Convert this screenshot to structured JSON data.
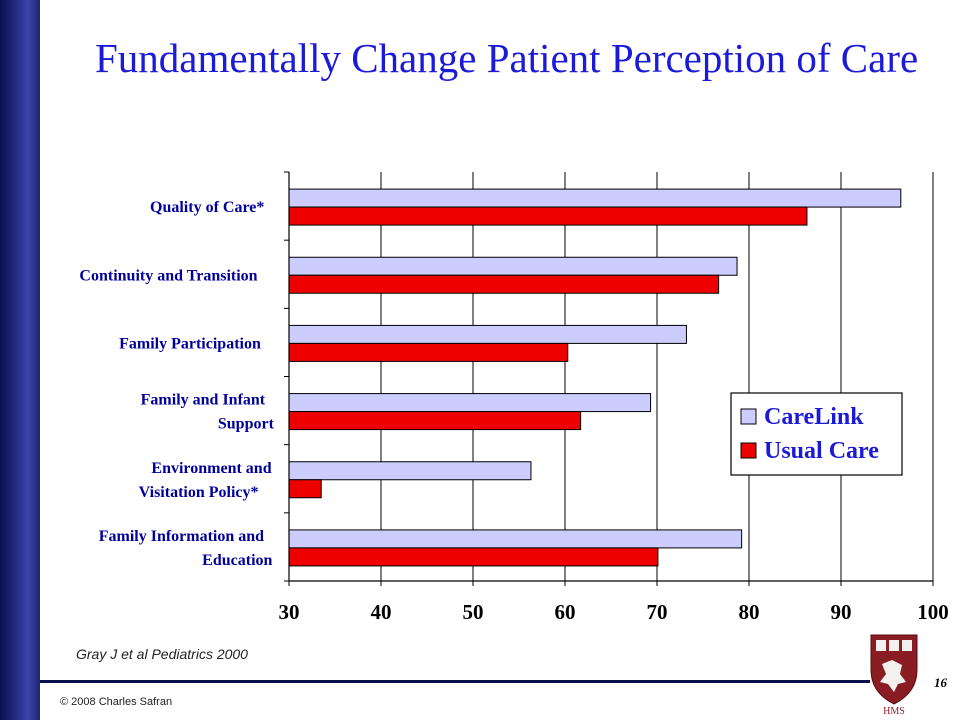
{
  "slide": {
    "title": "Fundamentally Change Patient Perception of Care",
    "citation": "Gray J et al Pediatrics 2000",
    "copyright": "© 2008 Charles Safran",
    "page_number": "16",
    "logo_text": "HMS"
  },
  "colors": {
    "title": "#1a1ad8",
    "sidebar": "#26308c",
    "carelink": "#ccccff",
    "usual_care": "#ee0000"
  },
  "chart_data": {
    "type": "bar",
    "orientation": "horizontal",
    "categories": [
      [
        "Quality of Care*"
      ],
      [
        "Continuity and Transition"
      ],
      [
        "Family Participation"
      ],
      [
        "Family and Infant",
        "Support"
      ],
      [
        "Environment and",
        "Visitation Policy*"
      ],
      [
        "Family Information and",
        "Education"
      ]
    ],
    "series": [
      {
        "name": "CareLink",
        "values": [
          96.5,
          78.7,
          73.2,
          69.3,
          56.3,
          79.2
        ]
      },
      {
        "name": "Usual Care",
        "values": [
          86.3,
          76.7,
          60.3,
          61.7,
          33.5,
          70.1
        ]
      }
    ],
    "xlim": [
      30,
      100
    ],
    "xticks": [
      "30",
      "40",
      "50",
      "60",
      "70",
      "80",
      "90",
      "100"
    ],
    "grid": true,
    "legend_position": "right"
  }
}
